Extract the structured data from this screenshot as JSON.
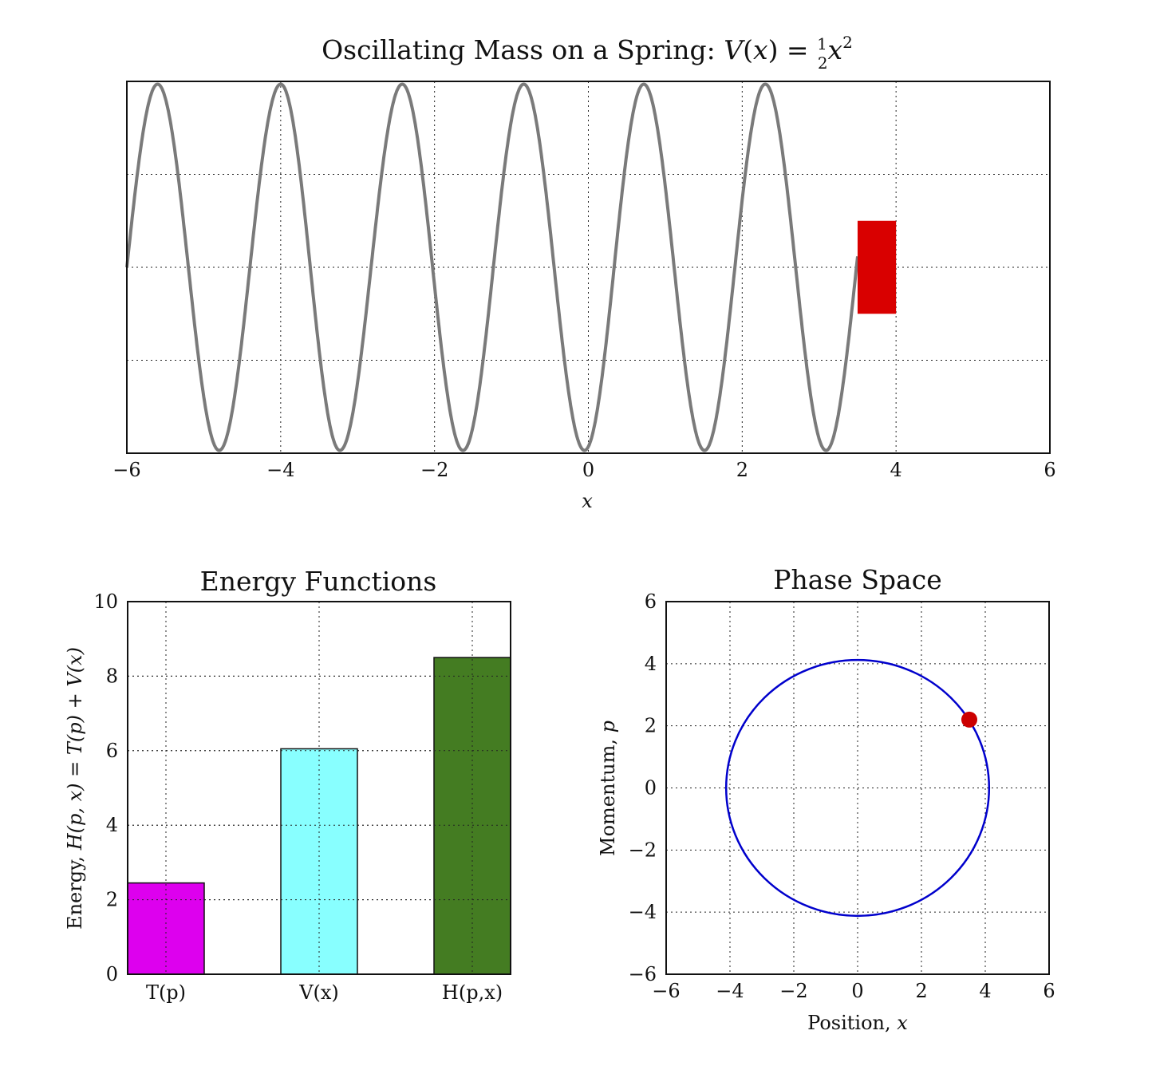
{
  "chart_data": [
    {
      "type": "line",
      "title_text": "Oscillating Mass on a Spring: ",
      "title_v": "V",
      "title_open": "(",
      "title_x": "x",
      "title_close": ")",
      "title_eq": " = ",
      "title_num": "1",
      "title_den": "2",
      "title_x2": "x",
      "title_exp": "2",
      "xlabel": "x",
      "xlim": [
        -6,
        6
      ],
      "ylim": [
        -1,
        1
      ],
      "xticks": [
        "−6",
        "−4",
        "−2",
        "0",
        "2",
        "4",
        "6"
      ],
      "xtick_values": [
        -6,
        -4,
        -2,
        0,
        2,
        4,
        6
      ],
      "ygrid_values": [
        -0.5,
        0,
        0.5
      ],
      "grid": true,
      "spring": {
        "x_start": -6,
        "x_end": 3.5,
        "peaks_x": [
          -5.6,
          -4.0,
          -2.42,
          -0.84,
          0.72,
          2.3
        ],
        "troughs_x": [
          -4.8,
          -3.23,
          -1.63,
          -0.05,
          1.51,
          3.09
        ],
        "color": "#7a7a7a"
      },
      "mass": {
        "x_min": 3.5,
        "x_max": 4.0,
        "y_min": -0.25,
        "y_max": 0.25,
        "color": "#d90000"
      }
    },
    {
      "type": "bar",
      "title": "Energy Functions",
      "ylabel_pre": "Energy, ",
      "ylabel_math": "H(p, x) = T(p) + V(x)",
      "categories": [
        "T(p)",
        "V(x)",
        "H(p,x)"
      ],
      "values": [
        2.45,
        6.05,
        8.5
      ],
      "colors": [
        "#dd00ee",
        "#88ffff",
        "#447c22"
      ],
      "ylim": [
        0,
        10
      ],
      "yticks": [
        "0",
        "2",
        "4",
        "6",
        "8",
        "10"
      ],
      "ytick_values": [
        0,
        2,
        4,
        6,
        8,
        10
      ],
      "grid": true
    },
    {
      "type": "scatter",
      "title": "Phase Space",
      "xlabel_pre": "Position, ",
      "xlabel_var": "x",
      "ylabel_pre": "Momentum, ",
      "ylabel_var": "p",
      "xlim": [
        -6,
        6
      ],
      "ylim": [
        -6,
        6
      ],
      "xticks": [
        "−6",
        "−4",
        "−2",
        "0",
        "2",
        "4",
        "6"
      ],
      "yticks": [
        "−6",
        "−4",
        "−2",
        "0",
        "2",
        "4",
        "6"
      ],
      "tick_values": [
        -6,
        -4,
        -2,
        0,
        2,
        4,
        6
      ],
      "grid": true,
      "orbit": {
        "center": [
          0,
          0
        ],
        "radius": 4.12,
        "color": "#0000cc"
      },
      "point": {
        "x": 3.5,
        "y": 2.2,
        "color": "#cc0000"
      }
    }
  ]
}
